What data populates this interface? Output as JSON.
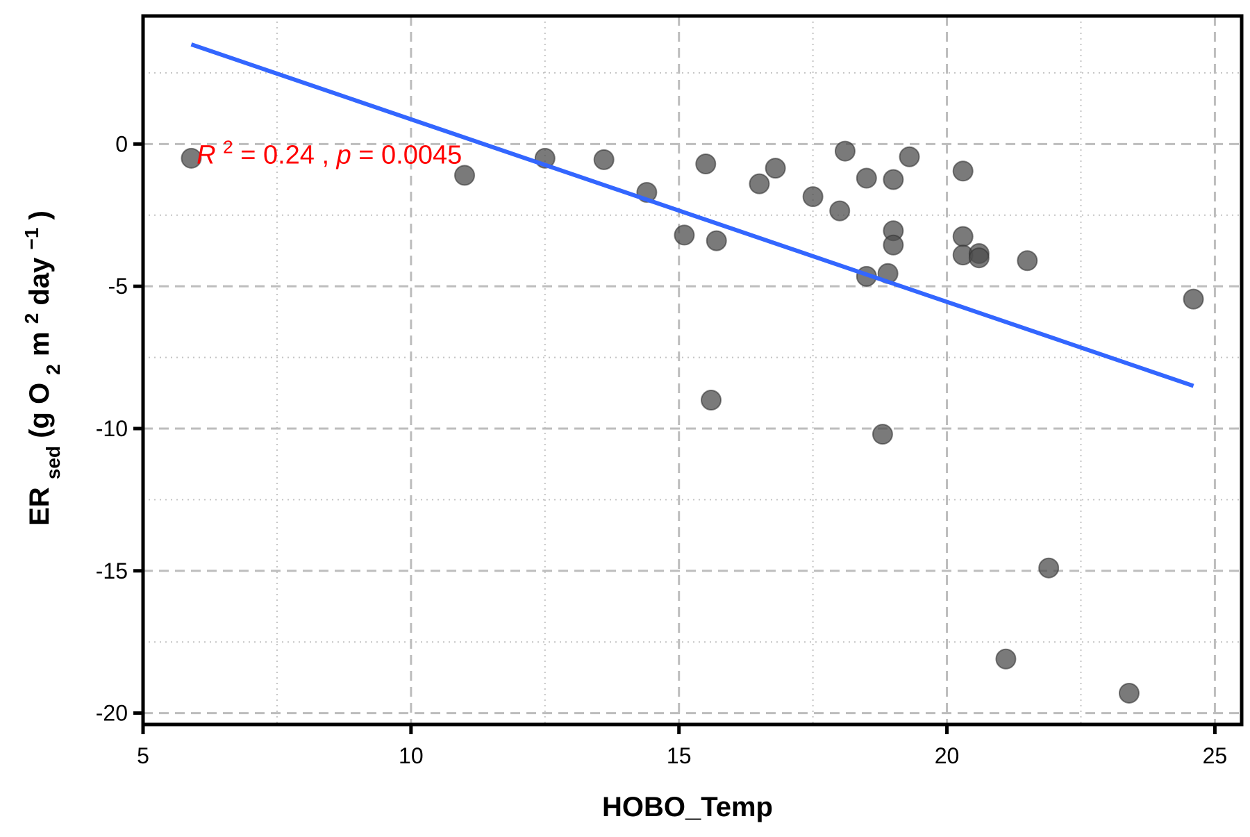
{
  "chart_data": {
    "type": "scatter",
    "title": "",
    "xlabel": "HOBO_Temp",
    "ylabel": {
      "main": "ER",
      "subscript": "sed",
      "prefix": " (g O",
      "o2_sub": "2",
      "m_text": " m",
      "m_sup": "2",
      "day_text": " day",
      "day_sup": "−1",
      "suffix": ")"
    },
    "xlim": [
      5,
      25.5
    ],
    "ylim": [
      -20.4,
      4.5
    ],
    "x_ticks": [
      5,
      10,
      15,
      20,
      25
    ],
    "x_tick_labels": [
      "5",
      "10",
      "15",
      "20",
      "25"
    ],
    "y_ticks": [
      0,
      -5,
      -10,
      -15,
      -20
    ],
    "y_tick_labels": [
      "0",
      "-5",
      "-10",
      "-15",
      "-20"
    ],
    "x_minor_grid": [
      7.5,
      12.5,
      17.5,
      22.5
    ],
    "y_minor_grid": [
      2.5,
      -2.5,
      -7.5,
      -12.5,
      -17.5
    ],
    "grid": true,
    "point_color": "#4d4d4d",
    "line_color": "#3366ff",
    "annotation_color": "#ff0000",
    "annotation": {
      "r_label": "R",
      "r_sup": "2",
      "r_value": " = 0.24 , ",
      "p_label": "p",
      "p_value": " = 0.0045"
    },
    "annotation_position": [
      6.0,
      -0.4
    ],
    "regression_line": {
      "x": [
        5.9,
        24.6
      ],
      "y": [
        3.5,
        -8.5
      ]
    },
    "points": [
      {
        "x": 5.9,
        "y": -0.5
      },
      {
        "x": 11.0,
        "y": -1.1
      },
      {
        "x": 12.5,
        "y": -0.5
      },
      {
        "x": 13.6,
        "y": -0.55
      },
      {
        "x": 14.4,
        "y": -1.7
      },
      {
        "x": 15.1,
        "y": -3.2
      },
      {
        "x": 15.5,
        "y": -0.7
      },
      {
        "x": 15.6,
        "y": -9.0
      },
      {
        "x": 15.7,
        "y": -3.4
      },
      {
        "x": 16.5,
        "y": -1.4
      },
      {
        "x": 16.8,
        "y": -0.85
      },
      {
        "x": 17.5,
        "y": -1.85
      },
      {
        "x": 18.0,
        "y": -2.35
      },
      {
        "x": 18.1,
        "y": -0.25
      },
      {
        "x": 18.5,
        "y": -1.2
      },
      {
        "x": 18.5,
        "y": -4.65
      },
      {
        "x": 18.8,
        "y": -10.2
      },
      {
        "x": 18.9,
        "y": -4.55
      },
      {
        "x": 19.0,
        "y": -1.25
      },
      {
        "x": 19.0,
        "y": -3.05
      },
      {
        "x": 19.0,
        "y": -3.55
      },
      {
        "x": 19.3,
        "y": -0.45
      },
      {
        "x": 20.3,
        "y": -0.95
      },
      {
        "x": 20.3,
        "y": -3.25
      },
      {
        "x": 20.3,
        "y": -3.9
      },
      {
        "x": 20.6,
        "y": -3.85
      },
      {
        "x": 20.6,
        "y": -4.0
      },
      {
        "x": 21.1,
        "y": -18.1
      },
      {
        "x": 21.5,
        "y": -4.1
      },
      {
        "x": 21.9,
        "y": -14.9
      },
      {
        "x": 23.4,
        "y": -19.3
      },
      {
        "x": 24.6,
        "y": -5.45
      }
    ]
  }
}
